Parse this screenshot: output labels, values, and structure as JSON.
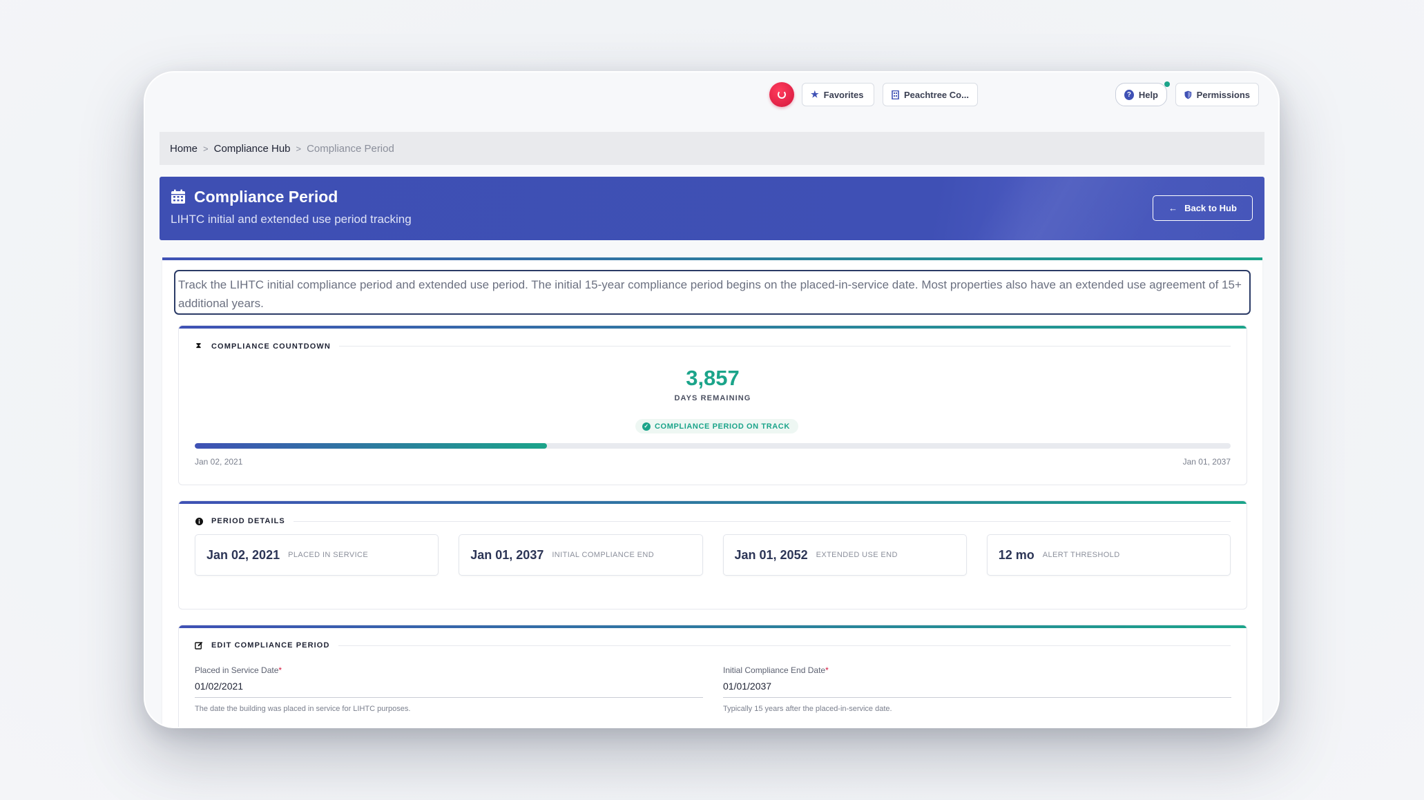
{
  "topbar": {
    "favorites_label": "Favorites",
    "org_label": "Peachtree Co...",
    "help_label": "Help",
    "permissions_label": "Permissions"
  },
  "breadcrumb": {
    "items": [
      "Home",
      "Compliance Hub",
      "Compliance Period"
    ],
    "separator": ">"
  },
  "header": {
    "title": "Compliance Period",
    "subtitle": "LIHTC initial and extended use period tracking",
    "back_label": "Back to Hub"
  },
  "intro_text": "Track the LIHTC initial compliance period and extended use period. The initial 15-year compliance period begins on the placed-in-service date. Most properties also have an extended use agreement of 15+ additional years.",
  "countdown": {
    "heading": "COMPLIANCE COUNTDOWN",
    "days": "3,857",
    "days_label": "DAYS REMAINING",
    "status": "COMPLIANCE PERIOD ON TRACK",
    "progress": 0.34,
    "start_date": "Jan 02, 2021",
    "end_date": "Jan 01, 2037"
  },
  "details": {
    "heading": "PERIOD DETAILS",
    "items": [
      {
        "value": "Jan 02, 2021",
        "label": "PLACED IN SERVICE"
      },
      {
        "value": "Jan 01, 2037",
        "label": "INITIAL COMPLIANCE END"
      },
      {
        "value": "Jan 01, 2052",
        "label": "EXTENDED USE END"
      },
      {
        "value": "12 mo",
        "label": "ALERT THRESHOLD"
      }
    ]
  },
  "edit": {
    "heading": "EDIT COMPLIANCE PERIOD",
    "fields": [
      {
        "label": "Placed in Service Date",
        "required": "*",
        "value": "01/02/2021",
        "help": "The date the building was placed in service for LIHTC purposes."
      },
      {
        "label": "Initial Compliance End Date",
        "required": "*",
        "value": "01/01/2037",
        "help": "Typically 15 years after the placed-in-service date."
      }
    ]
  },
  "colors": {
    "primary": "#3f51b5",
    "accent": "#1ba48a",
    "brand_red": "#d3163d"
  },
  "icons": {
    "logo": "brand-logo-icon",
    "favorites": "star-icon",
    "org": "building-icon",
    "help": "question-circle-icon",
    "permissions": "shield-icon",
    "header": "calendar-icon",
    "back": "arrow-left-icon",
    "countdown": "hourglass-icon",
    "details": "info-circle-icon",
    "edit": "edit-icon",
    "status": "check-circle-icon"
  }
}
